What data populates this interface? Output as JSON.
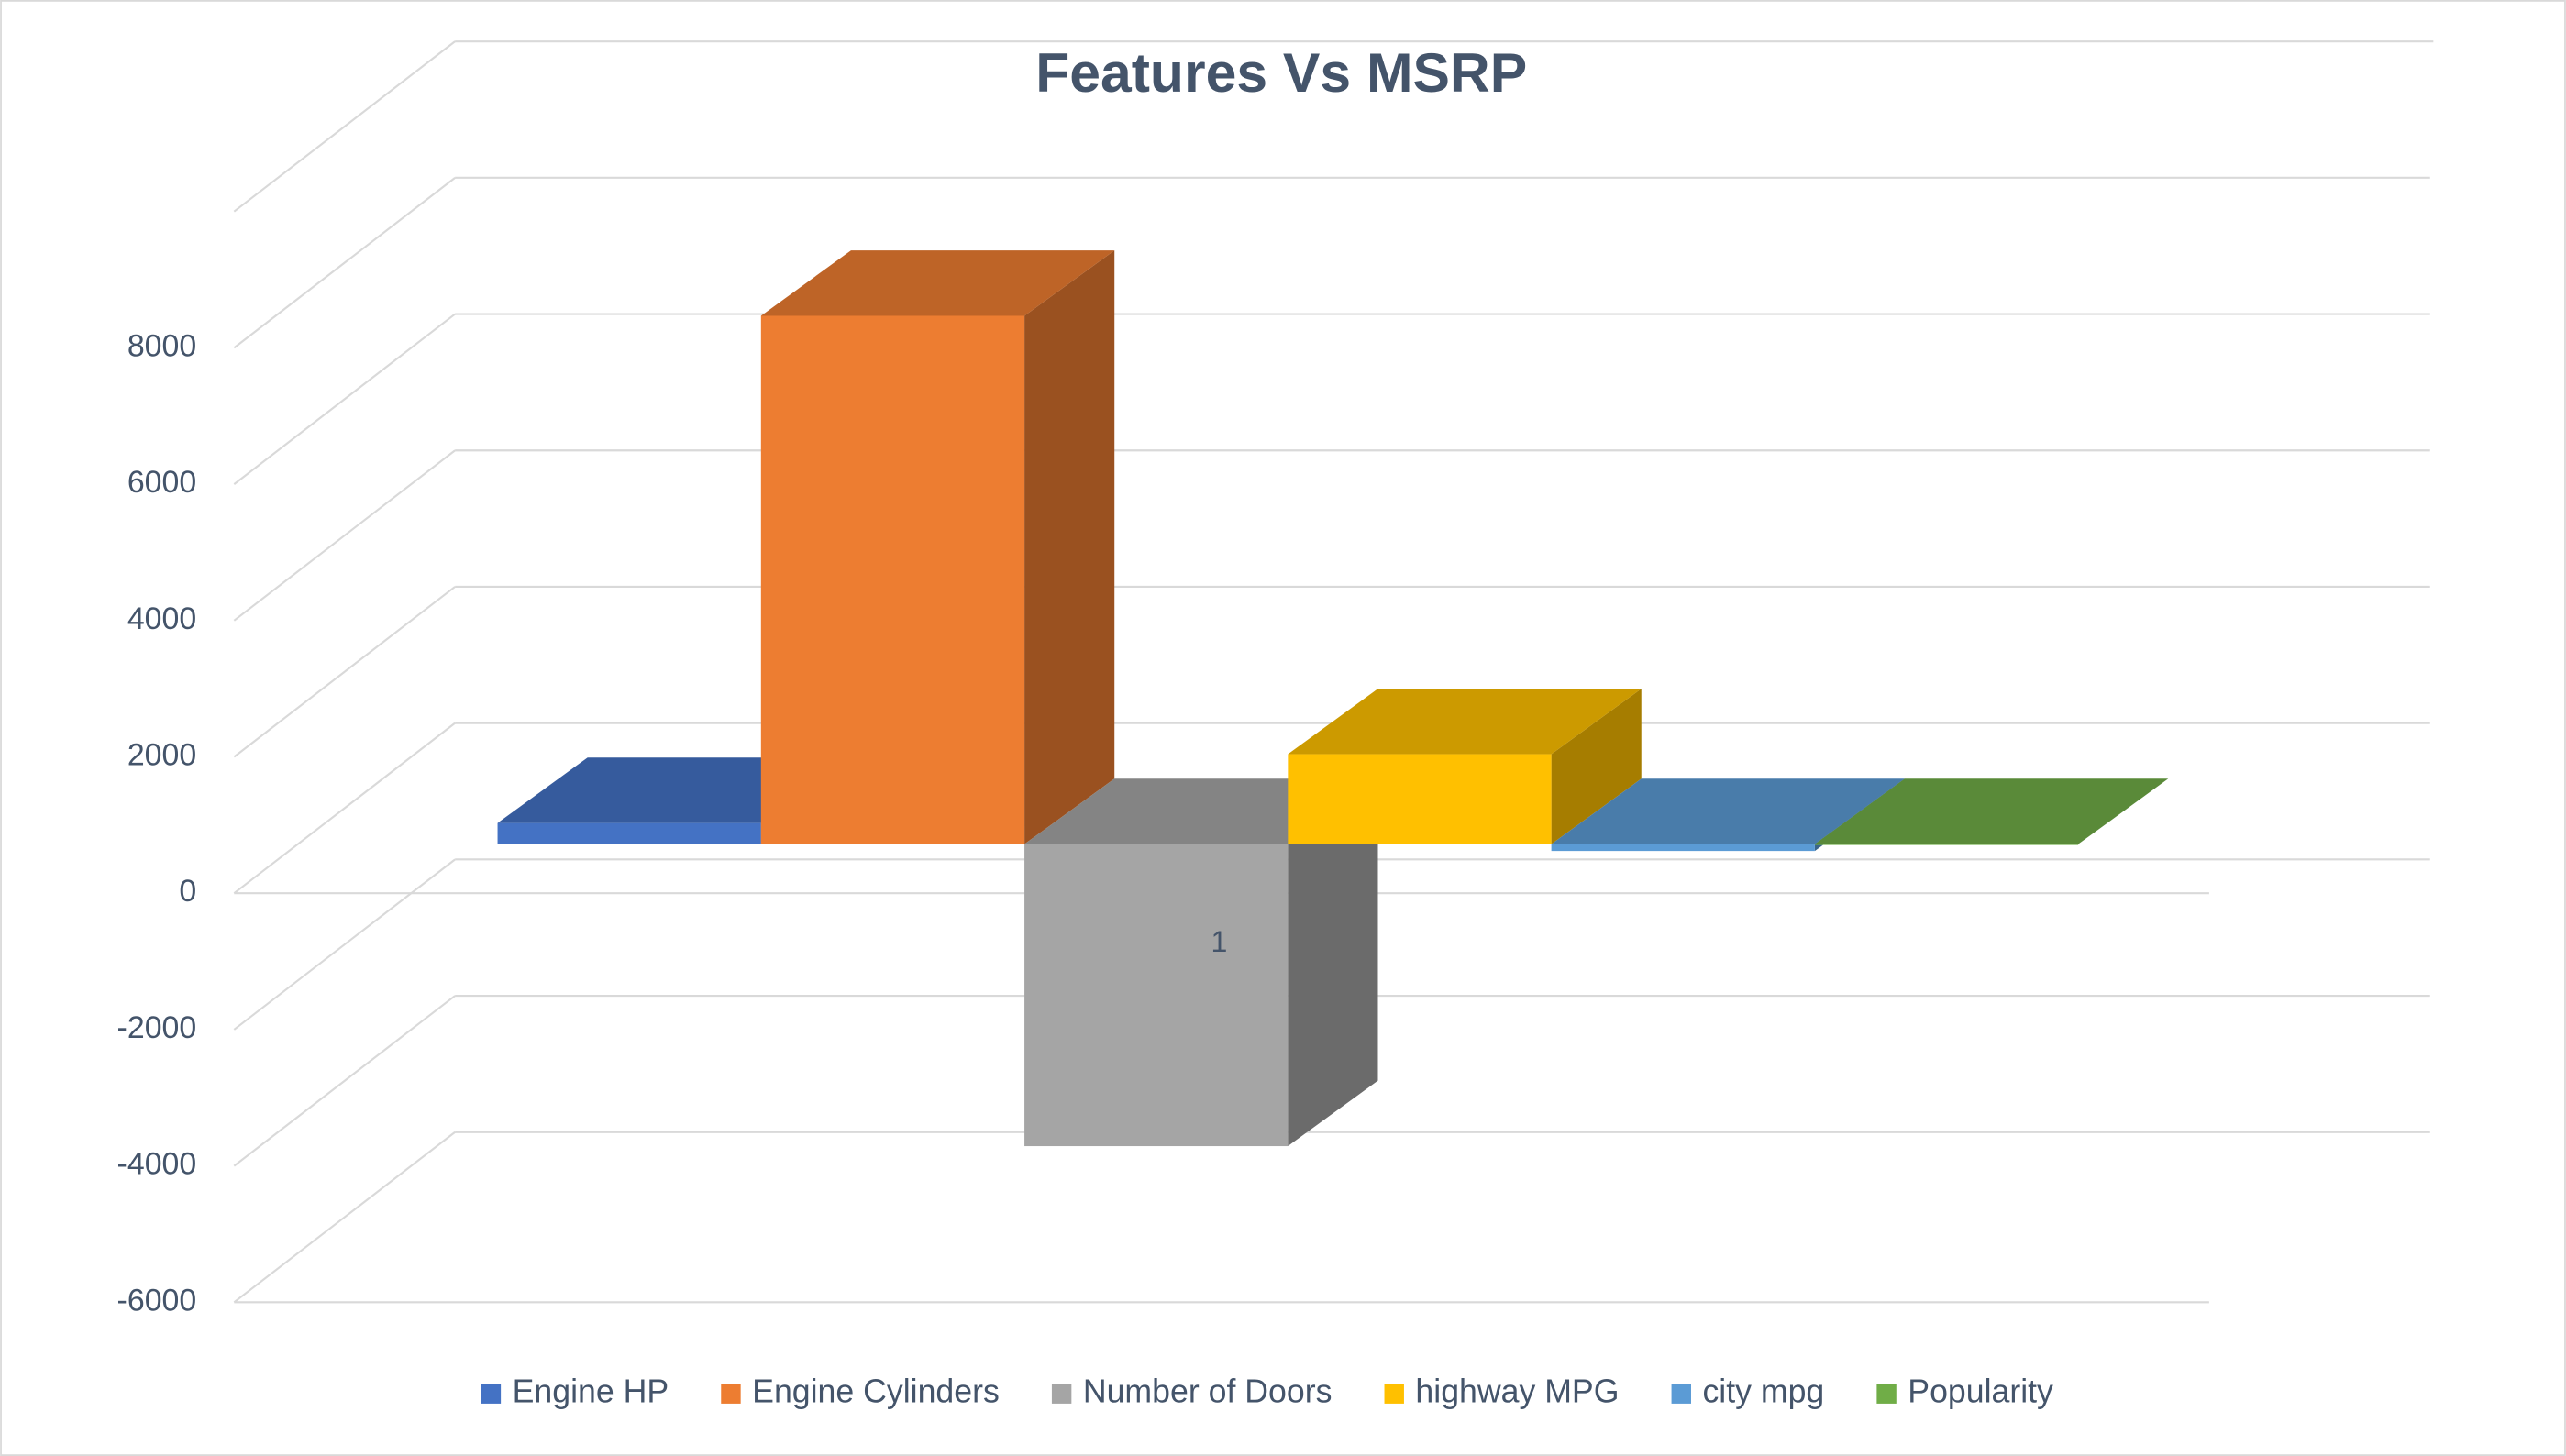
{
  "chart_data": {
    "type": "bar3d",
    "title": "Features Vs MSRP",
    "categories": [
      "1"
    ],
    "series": [
      {
        "name": "Engine HP",
        "color": "#4472c4",
        "values": [
          310
        ]
      },
      {
        "name": "Engine Cylinders",
        "color": "#ed7d31",
        "values": [
          7750
        ]
      },
      {
        "name": "Number of Doors",
        "color": "#a5a5a5",
        "values": [
          -4430
        ]
      },
      {
        "name": "highway MPG",
        "color": "#ffc000",
        "values": [
          1320
        ]
      },
      {
        "name": "city mpg",
        "color": "#5b9bd5",
        "values": [
          -100
        ]
      },
      {
        "name": "Popularity",
        "color": "#70ad47",
        "values": [
          0
        ]
      }
    ],
    "ylim": [
      -6000,
      10000
    ],
    "yticks": [
      -6000,
      -4000,
      -2000,
      0,
      2000,
      4000,
      6000,
      8000
    ],
    "grid": true,
    "legend": "bottom"
  }
}
